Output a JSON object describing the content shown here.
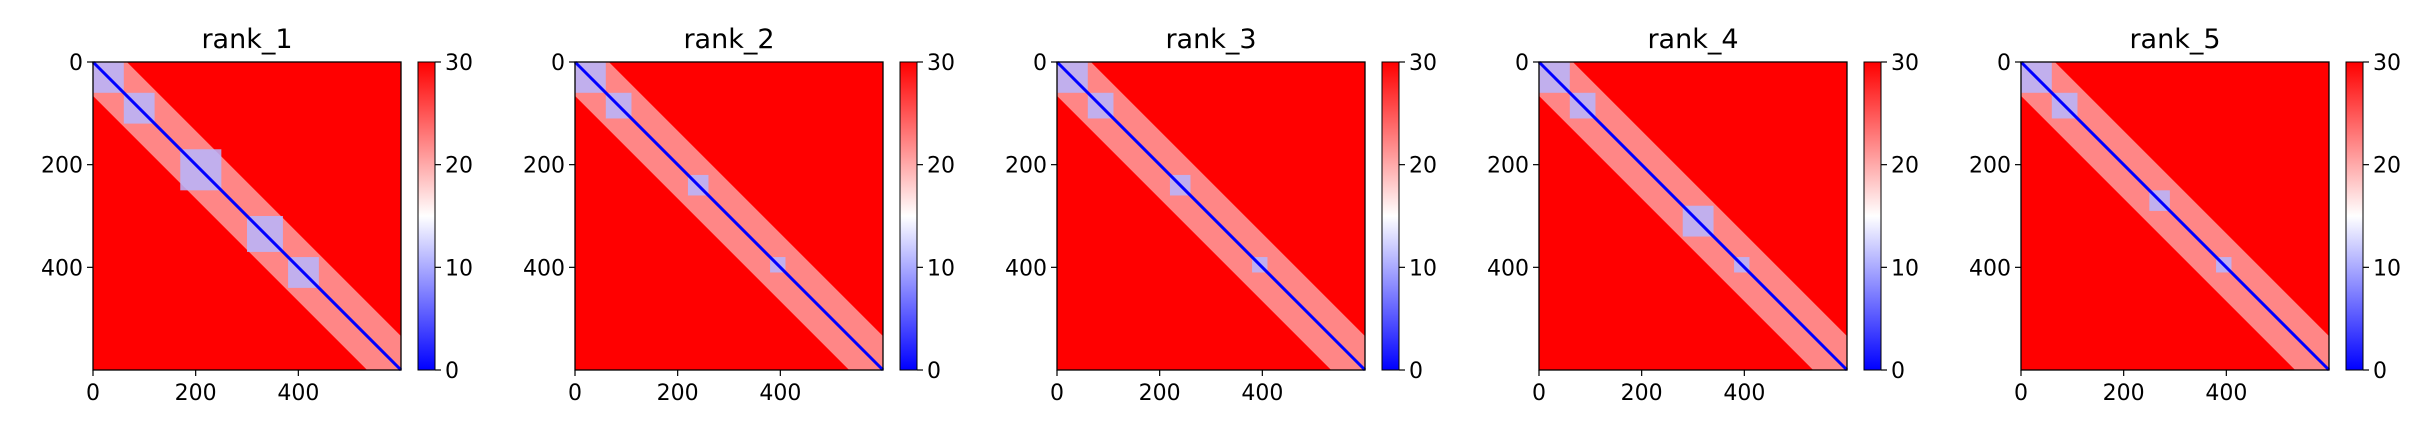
{
  "colors": {
    "low": "#0000ff",
    "mid": "#ffffff",
    "high": "#ff0000"
  },
  "chart_data": [
    {
      "type": "heatmap",
      "title": "rank_1",
      "x_ticks": [
        "0",
        "200",
        "400"
      ],
      "y_ticks": [
        "0",
        "200",
        "400"
      ],
      "xlim": [
        0,
        600
      ],
      "ylim": [
        600,
        0
      ],
      "colorbar": {
        "range": [
          0,
          30
        ],
        "ticks": [
          "0",
          "10",
          "20",
          "30"
        ]
      },
      "diagonal_blue_blocks": [
        [
          0,
          60
        ],
        [
          60,
          120
        ],
        [
          170,
          250
        ],
        [
          300,
          370
        ],
        [
          380,
          440
        ]
      ]
    },
    {
      "type": "heatmap",
      "title": "rank_2",
      "x_ticks": [
        "0",
        "200",
        "400"
      ],
      "y_ticks": [
        "0",
        "200",
        "400"
      ],
      "xlim": [
        0,
        600
      ],
      "ylim": [
        600,
        0
      ],
      "colorbar": {
        "range": [
          0,
          30
        ],
        "ticks": [
          "0",
          "10",
          "20",
          "30"
        ]
      },
      "diagonal_blue_blocks": [
        [
          0,
          60
        ],
        [
          60,
          110
        ],
        [
          220,
          260
        ],
        [
          380,
          410
        ]
      ]
    },
    {
      "type": "heatmap",
      "title": "rank_3",
      "x_ticks": [
        "0",
        "200",
        "400"
      ],
      "y_ticks": [
        "0",
        "200",
        "400"
      ],
      "xlim": [
        0,
        600
      ],
      "ylim": [
        600,
        0
      ],
      "colorbar": {
        "range": [
          0,
          30
        ],
        "ticks": [
          "0",
          "10",
          "20",
          "30"
        ]
      },
      "diagonal_blue_blocks": [
        [
          0,
          60
        ],
        [
          60,
          110
        ],
        [
          220,
          260
        ],
        [
          380,
          410
        ]
      ]
    },
    {
      "type": "heatmap",
      "title": "rank_4",
      "x_ticks": [
        "0",
        "200",
        "400"
      ],
      "y_ticks": [
        "0",
        "200",
        "400"
      ],
      "xlim": [
        0,
        600
      ],
      "ylim": [
        600,
        0
      ],
      "colorbar": {
        "range": [
          0,
          30
        ],
        "ticks": [
          "0",
          "10",
          "20",
          "30"
        ]
      },
      "diagonal_blue_blocks": [
        [
          0,
          60
        ],
        [
          60,
          110
        ],
        [
          280,
          340
        ],
        [
          380,
          410
        ]
      ]
    },
    {
      "type": "heatmap",
      "title": "rank_5",
      "x_ticks": [
        "0",
        "200",
        "400"
      ],
      "y_ticks": [
        "0",
        "200",
        "400"
      ],
      "xlim": [
        0,
        600
      ],
      "ylim": [
        600,
        0
      ],
      "colorbar": {
        "range": [
          0,
          30
        ],
        "ticks": [
          "0",
          "10",
          "20",
          "30"
        ]
      },
      "diagonal_blue_blocks": [
        [
          0,
          60
        ],
        [
          60,
          110
        ],
        [
          250,
          290
        ],
        [
          380,
          410
        ]
      ]
    }
  ]
}
